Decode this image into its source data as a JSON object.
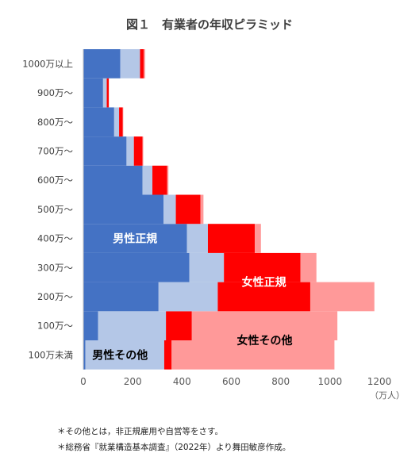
{
  "chart_data": {
    "type": "bar",
    "title": "図１　有業者の年収ピラミッド",
    "categories": [
      "100万未満",
      "100万〜",
      "200万〜",
      "300万〜",
      "400万〜",
      "500万〜",
      "600万〜",
      "700万〜",
      "800万〜",
      "900万〜",
      "1000万以上"
    ],
    "series": [
      {
        "values": [
          8,
          60,
          305,
          430,
          420,
          325,
          240,
          175,
          125,
          80,
          150
        ]
      },
      {
        "values": [
          320,
          275,
          240,
          140,
          85,
          50,
          40,
          30,
          20,
          15,
          80
        ]
      },
      {
        "values": [
          30,
          105,
          375,
          310,
          190,
          100,
          60,
          35,
          15,
          8,
          15
        ]
      },
      {
        "values": [
          660,
          590,
          260,
          65,
          25,
          12,
          5,
          3,
          2,
          1,
          6
        ]
      }
    ],
    "colors": [
      "#4472c4",
      "#b4c7e7",
      "#ff0000",
      "#ff9999"
    ],
    "series_labels": [
      "男性正規",
      "男性その他",
      "女性正規",
      "女性その他"
    ],
    "xlim": [
      0,
      1200
    ],
    "xticks": [
      "0",
      "200",
      "400",
      "600",
      "800",
      "1000",
      "1200"
    ],
    "xunit": "（万人）",
    "grid": false,
    "legend": "none"
  },
  "notes": [
    "＊その他とは，非正規雇用や自営等をさす。",
    "＊総務省『就業構造基本調査』（2022年）より舞田敏彦作成。"
  ]
}
